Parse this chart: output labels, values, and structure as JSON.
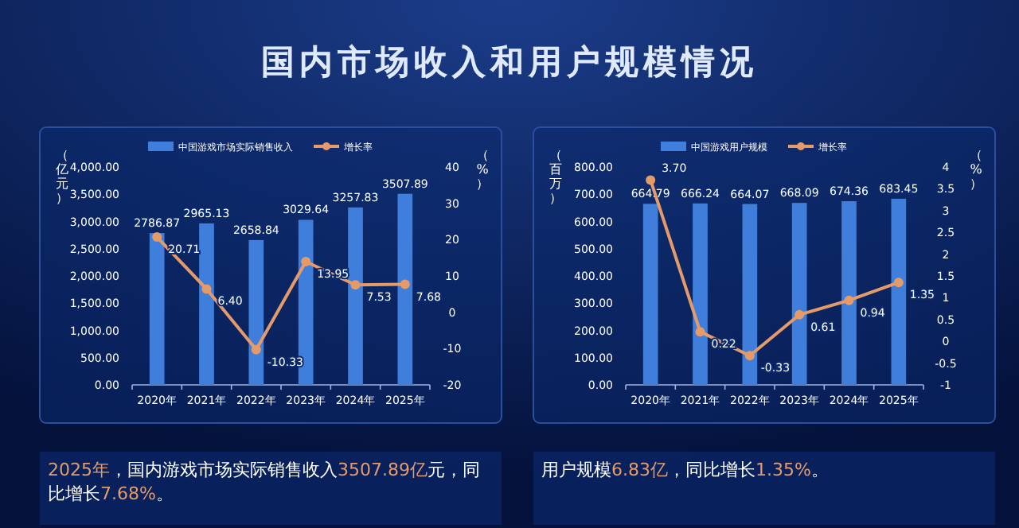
{
  "chart_data": [
    {
      "type": "bar",
      "title": "国内市场收入和用户规模情况",
      "categories": [
        "2020年",
        "2021年",
        "2022年",
        "2023年",
        "2024年",
        "2025年"
      ],
      "ylabel": "（亿元）",
      "y2label": "（%）",
      "legend": "top",
      "grid": false,
      "ylim": [
        0,
        4000
      ],
      "yticks": [
        {
          "value": 0,
          "label": "0.00"
        },
        {
          "value": 500,
          "label": "500.00"
        },
        {
          "value": 1000,
          "label": "1,000.00"
        },
        {
          "value": 1500,
          "label": "1,500.00"
        },
        {
          "value": 2000,
          "label": "2,000.00"
        },
        {
          "value": 2500,
          "label": "2,500.00"
        },
        {
          "value": 3000,
          "label": "3,000.00"
        },
        {
          "value": 3500,
          "label": "3,500.00"
        },
        {
          "value": 4000,
          "label": "4,000.00"
        }
      ],
      "y2lim": [
        -20,
        40
      ],
      "y2ticks": [
        -20,
        -10,
        0,
        10,
        20,
        30,
        40
      ],
      "series": [
        {
          "name": "中国游戏市场实际销售收入",
          "color": "#3f7fdb",
          "values": [
            2786.87,
            2965.13,
            2658.84,
            3029.64,
            3257.83,
            3507.89
          ],
          "value_labels": [
            "2786.87",
            "2965.13",
            "2658.84",
            "3029.64",
            "3257.83",
            "3507.89"
          ]
        },
        {
          "name": "增长率",
          "type": "line",
          "axis": "y2",
          "color": "#e59a6a",
          "marker": "circle",
          "values": [
            20.71,
            6.4,
            -10.33,
            13.95,
            7.53,
            7.68
          ],
          "value_labels": [
            "20.71",
            "6.40",
            "-10.33",
            "13.95",
            "7.53",
            "7.68"
          ]
        }
      ],
      "annotations": [
        "2025年，国内游戏市场实际销售收入3507.89亿元，同比增长7.68%。"
      ]
    },
    {
      "type": "bar",
      "categories": [
        "2020年",
        "2021年",
        "2022年",
        "2023年",
        "2024年",
        "2025年"
      ],
      "ylabel": "（百万）",
      "y2label": "（%）",
      "legend": "top",
      "grid": false,
      "ylim": [
        0,
        800
      ],
      "yticks": [
        {
          "value": 0,
          "label": "0.00"
        },
        {
          "value": 100,
          "label": "100.00"
        },
        {
          "value": 200,
          "label": "200.00"
        },
        {
          "value": 300,
          "label": "300.00"
        },
        {
          "value": 400,
          "label": "400.00"
        },
        {
          "value": 500,
          "label": "500.00"
        },
        {
          "value": 600,
          "label": "600.00"
        },
        {
          "value": 700,
          "label": "700.00"
        },
        {
          "value": 800,
          "label": "800.00"
        }
      ],
      "y2lim": [
        -1,
        4
      ],
      "y2ticks": [
        -1,
        -0.5,
        0,
        0.5,
        1,
        1.5,
        2,
        2.5,
        3,
        3.5,
        4
      ],
      "series": [
        {
          "name": "中国游戏用户规模",
          "color": "#3f7fdb",
          "values": [
            664.79,
            666.24,
            664.07,
            668.09,
            674.36,
            683.45
          ],
          "value_labels": [
            "664.79",
            "666.24",
            "664.07",
            "668.09",
            "674.36",
            "683.45"
          ]
        },
        {
          "name": "增长率",
          "type": "line",
          "axis": "y2",
          "color": "#e59a6a",
          "marker": "circle",
          "values": [
            3.7,
            0.22,
            -0.33,
            0.61,
            0.94,
            1.35
          ],
          "value_labels": [
            "3.70",
            "0.22",
            "-0.33",
            "0.61",
            "0.94",
            "1.35"
          ]
        }
      ],
      "annotations": [
        "用户规模6.83亿，同比增长1.35%。"
      ]
    }
  ]
}
